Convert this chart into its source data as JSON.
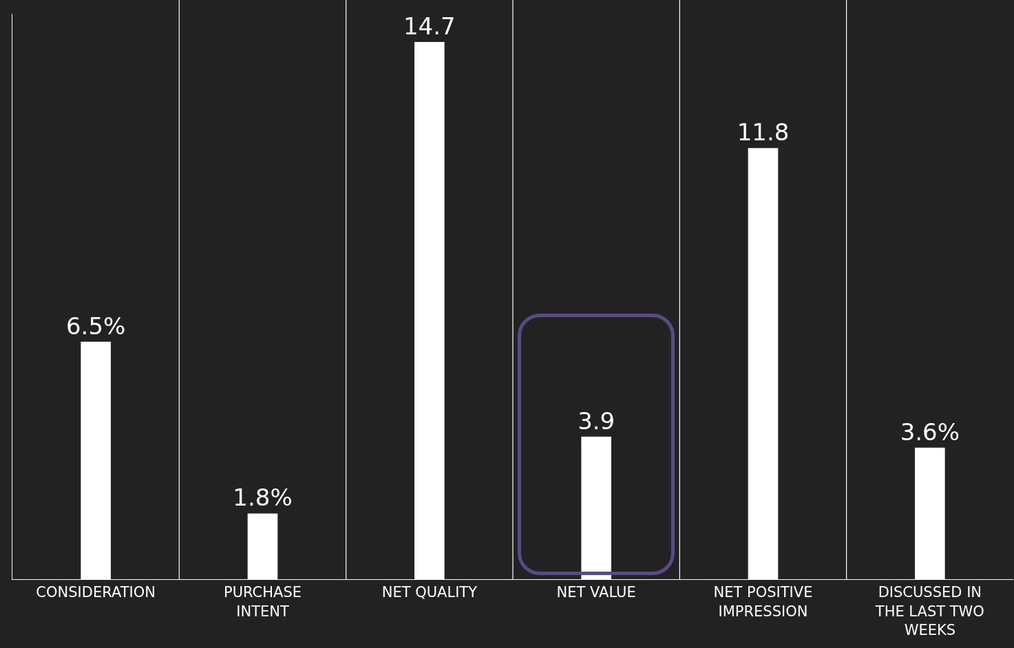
{
  "chart_data": {
    "type": "bar",
    "categories": [
      "CONSIDERATION",
      "PURCHASE INTENT",
      "NET QUALITY",
      "NET VALUE",
      "NET POSITIVE IMPRESSION",
      "DISCUSSED IN THE LAST TWO WEEKS"
    ],
    "values": [
      6.5,
      1.8,
      14.7,
      3.9,
      11.8,
      3.6
    ],
    "value_labels": [
      "6.5%",
      "1.8%",
      "14.7",
      "3.9",
      "11.8",
      "3.6%"
    ],
    "color": "#ffffff",
    "grid": "x"
  }
}
